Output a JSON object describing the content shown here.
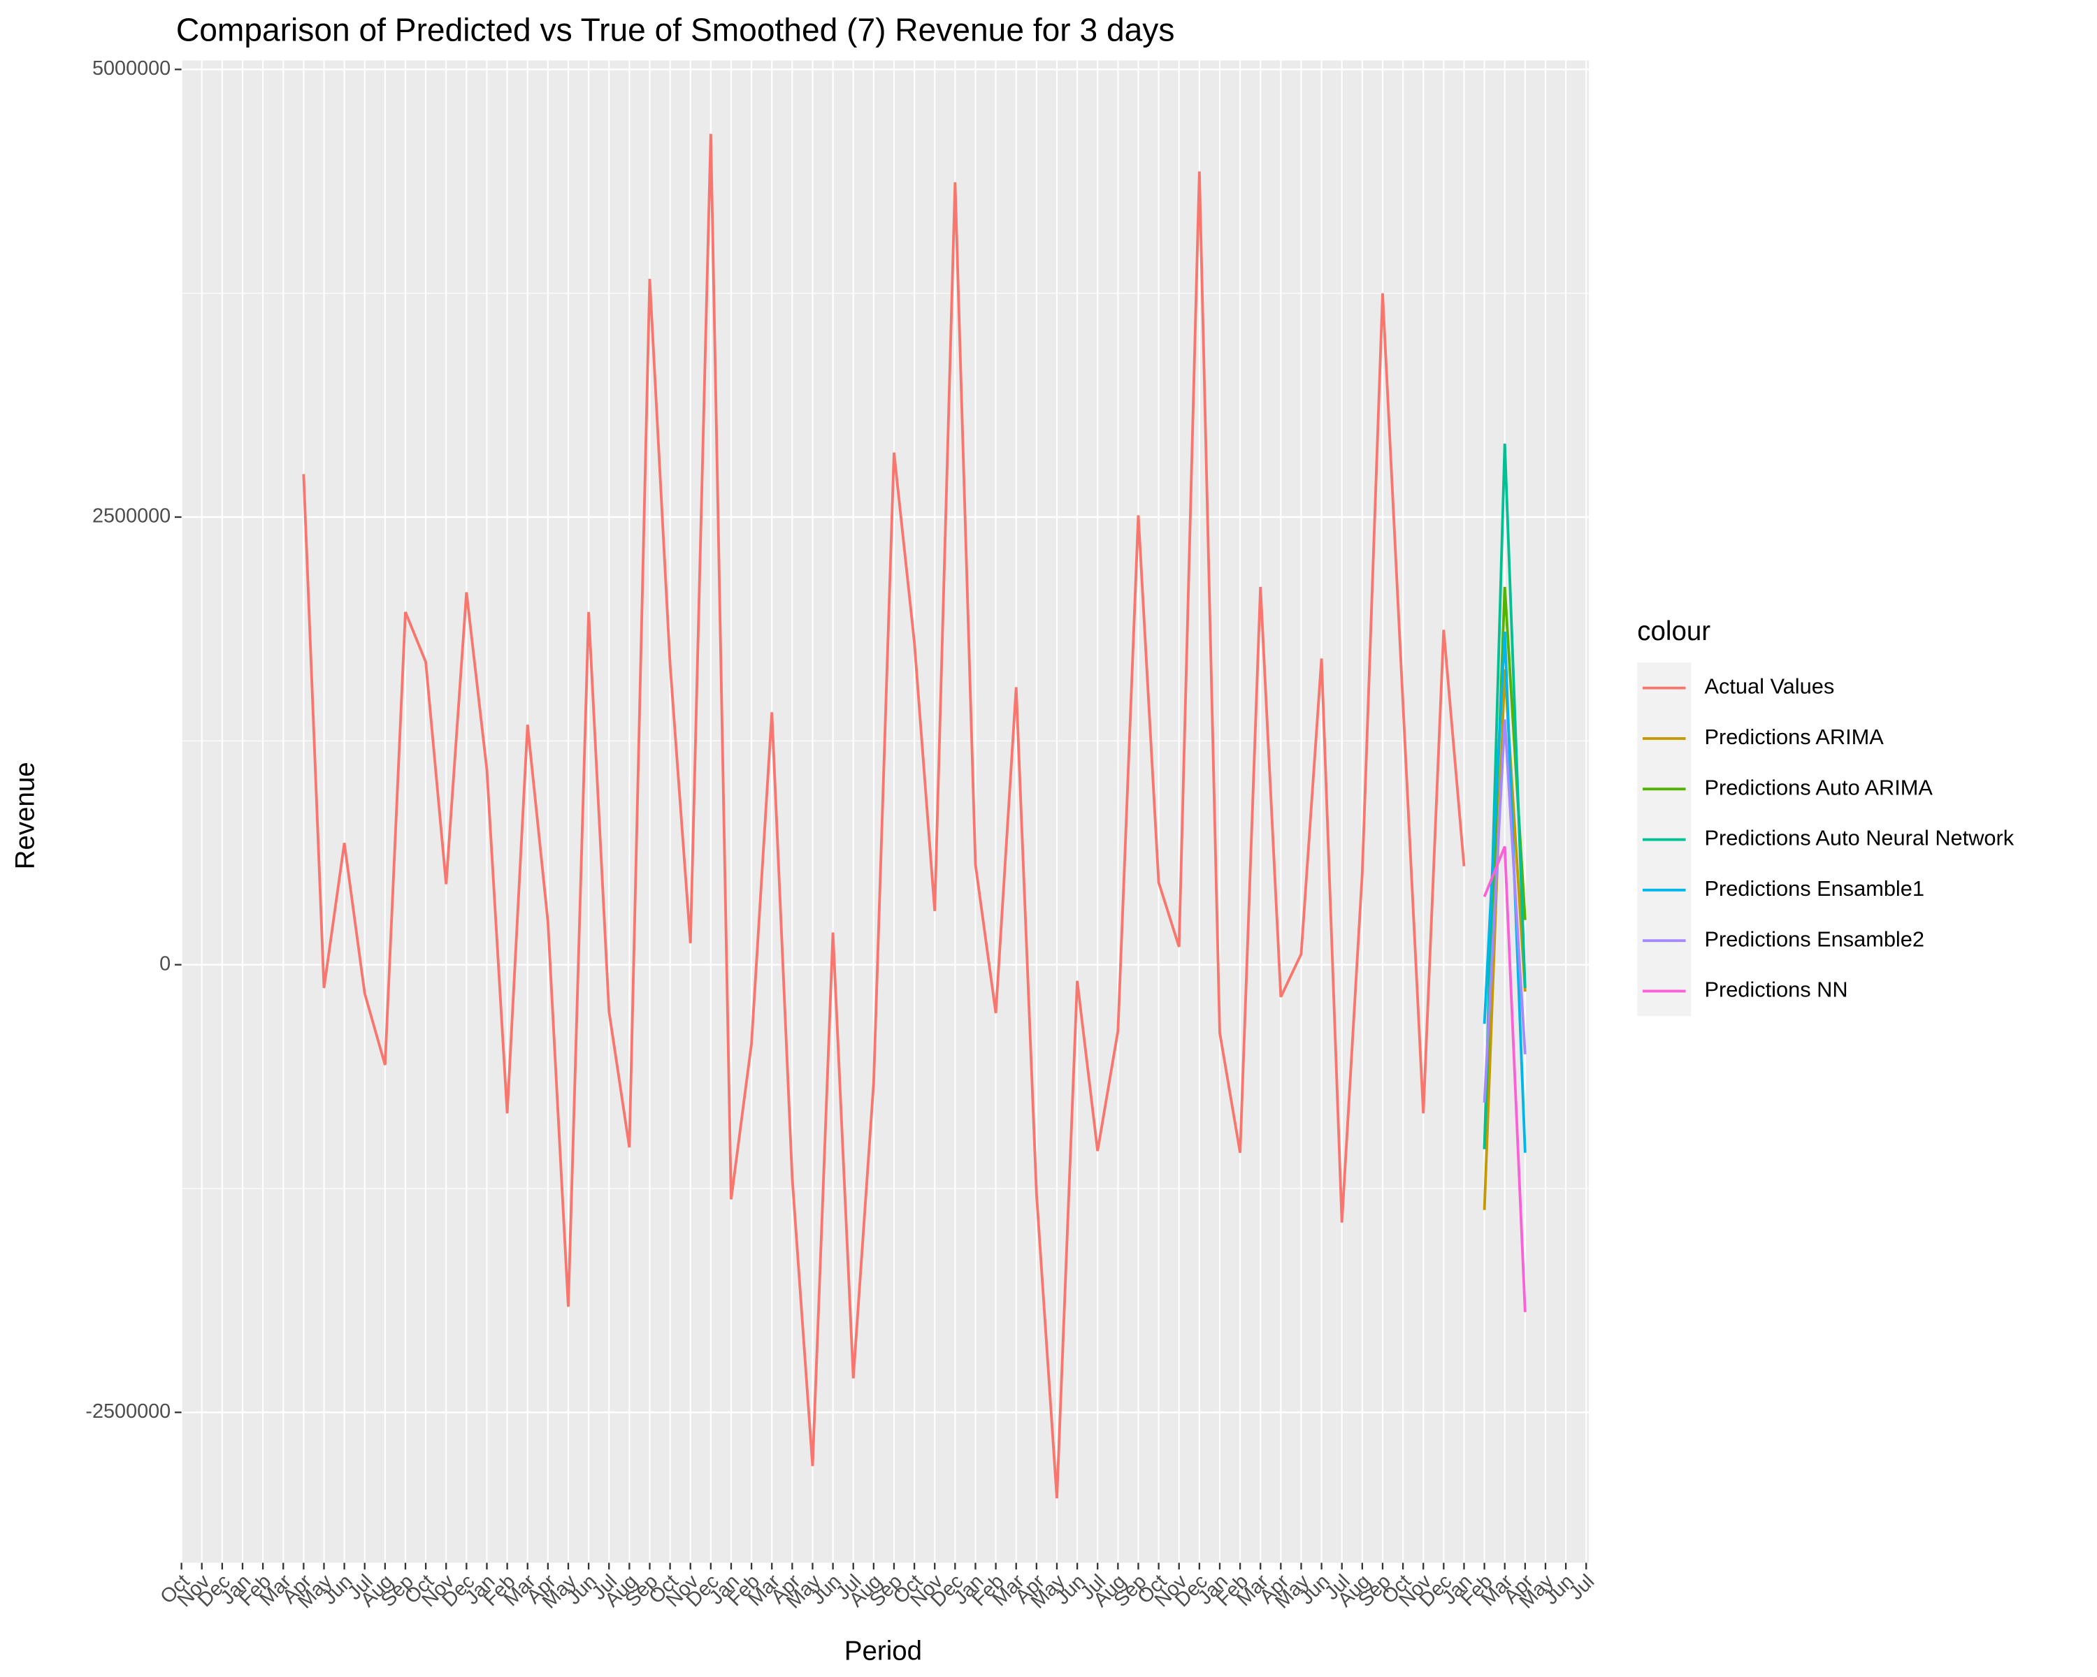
{
  "chart_data": {
    "type": "line",
    "title": "Comparison of Predicted vs True of Smoothed (7) Revenue for 3 days",
    "x_label": "Period",
    "y_label": "Revenue",
    "legend_title": "colour",
    "legend_position": "right",
    "categories": [
      "Oct",
      "Nov",
      "Dec",
      "Jan",
      "Feb",
      "Mar",
      "Apr",
      "May",
      "Jun",
      "Jul",
      "Aug",
      "Sep",
      "Oct",
      "Nov",
      "Dec",
      "Jan",
      "Feb",
      "Mar",
      "Apr",
      "May",
      "Jun",
      "Jul",
      "Aug",
      "Sep",
      "Oct",
      "Nov",
      "Dec",
      "Jan",
      "Feb",
      "Mar",
      "Apr",
      "May",
      "Jun",
      "Jul",
      "Aug",
      "Sep",
      "Oct",
      "Nov",
      "Dec",
      "Jan",
      "Feb",
      "Mar",
      "Apr",
      "May",
      "Jun",
      "Jul",
      "Aug",
      "Sep",
      "Oct",
      "Nov",
      "Dec",
      "Jan",
      "Feb",
      "Mar",
      "Apr",
      "May",
      "Jun",
      "Jul",
      "Aug",
      "Sep",
      "Oct",
      "Nov",
      "Dec",
      "Jan",
      "Feb",
      "Mar",
      "Apr",
      "May",
      "Jun",
      "Jul"
    ],
    "ylim": [
      -3340000,
      5050000
    ],
    "yticks": [
      -2500000,
      0,
      2500000,
      5000000
    ],
    "grid": true,
    "series": [
      {
        "name": "Actual Values",
        "color": "#F8766D",
        "values": [
          null,
          null,
          null,
          null,
          null,
          null,
          2740000,
          -130000,
          680000,
          -160000,
          -560000,
          1970000,
          1690000,
          450000,
          2080000,
          1090000,
          -830000,
          1340000,
          240000,
          -1910000,
          1970000,
          -260000,
          -1020000,
          3830000,
          1680000,
          120000,
          4640000,
          -1310000,
          -440000,
          1410000,
          -1190000,
          -2800000,
          180000,
          -2310000,
          -660000,
          2860000,
          1800000,
          300000,
          4370000,
          560000,
          -270000,
          1550000,
          -1280000,
          -2980000,
          -90000,
          -1040000,
          -370000,
          2510000,
          460000,
          100000,
          4430000,
          -380000,
          -1050000,
          2110000,
          -180000,
          60000,
          1710000,
          -1440000,
          510000,
          3750000,
          1460000,
          -830000,
          1870000,
          550000,
          null,
          null,
          null,
          null,
          null,
          null
        ]
      },
      {
        "name": "Predictions ARIMA",
        "color": "#C49A00",
        "values": [
          null,
          null,
          null,
          null,
          null,
          null,
          null,
          null,
          null,
          null,
          null,
          null,
          null,
          null,
          null,
          null,
          null,
          null,
          null,
          null,
          null,
          null,
          null,
          null,
          null,
          null,
          null,
          null,
          null,
          null,
          null,
          null,
          null,
          null,
          null,
          null,
          null,
          null,
          null,
          null,
          null,
          null,
          null,
          null,
          null,
          null,
          null,
          null,
          null,
          null,
          null,
          null,
          null,
          null,
          null,
          null,
          null,
          null,
          null,
          null,
          null,
          null,
          null,
          null,
          -1370000,
          1650000,
          -150000,
          null,
          null,
          null
        ]
      },
      {
        "name": "Predictions Auto ARIMA",
        "color": "#53B400",
        "values": [
          null,
          null,
          null,
          null,
          null,
          null,
          null,
          null,
          null,
          null,
          null,
          null,
          null,
          null,
          null,
          null,
          null,
          null,
          null,
          null,
          null,
          null,
          null,
          null,
          null,
          null,
          null,
          null,
          null,
          null,
          null,
          null,
          null,
          null,
          null,
          null,
          null,
          null,
          null,
          null,
          null,
          null,
          null,
          null,
          null,
          null,
          null,
          null,
          null,
          null,
          null,
          null,
          null,
          null,
          null,
          null,
          null,
          null,
          null,
          null,
          null,
          null,
          null,
          null,
          -1030000,
          2110000,
          250000,
          null,
          null,
          null
        ]
      },
      {
        "name": "Predictions Auto Neural Network",
        "color": "#00C094",
        "values": [
          null,
          null,
          null,
          null,
          null,
          null,
          null,
          null,
          null,
          null,
          null,
          null,
          null,
          null,
          null,
          null,
          null,
          null,
          null,
          null,
          null,
          null,
          null,
          null,
          null,
          null,
          null,
          null,
          null,
          null,
          null,
          null,
          null,
          null,
          null,
          null,
          null,
          null,
          null,
          null,
          null,
          null,
          null,
          null,
          null,
          null,
          null,
          null,
          null,
          null,
          null,
          null,
          null,
          null,
          null,
          null,
          null,
          null,
          null,
          null,
          null,
          null,
          null,
          null,
          -1030000,
          2910000,
          -130000,
          null,
          null,
          null
        ]
      },
      {
        "name": "Predictions Ensamble1",
        "color": "#00B6EB",
        "values": [
          null,
          null,
          null,
          null,
          null,
          null,
          null,
          null,
          null,
          null,
          null,
          null,
          null,
          null,
          null,
          null,
          null,
          null,
          null,
          null,
          null,
          null,
          null,
          null,
          null,
          null,
          null,
          null,
          null,
          null,
          null,
          null,
          null,
          null,
          null,
          null,
          null,
          null,
          null,
          null,
          null,
          null,
          null,
          null,
          null,
          null,
          null,
          null,
          null,
          null,
          null,
          null,
          null,
          null,
          null,
          null,
          null,
          null,
          null,
          null,
          null,
          null,
          null,
          null,
          -330000,
          1860000,
          -1050000,
          null,
          null,
          null
        ]
      },
      {
        "name": "Predictions Ensamble2",
        "color": "#A58AFF",
        "values": [
          null,
          null,
          null,
          null,
          null,
          null,
          null,
          null,
          null,
          null,
          null,
          null,
          null,
          null,
          null,
          null,
          null,
          null,
          null,
          null,
          null,
          null,
          null,
          null,
          null,
          null,
          null,
          null,
          null,
          null,
          null,
          null,
          null,
          null,
          null,
          null,
          null,
          null,
          null,
          null,
          null,
          null,
          null,
          null,
          null,
          null,
          null,
          null,
          null,
          null,
          null,
          null,
          null,
          null,
          null,
          null,
          null,
          null,
          null,
          null,
          null,
          null,
          null,
          null,
          -770000,
          1370000,
          -500000,
          null,
          null,
          null
        ]
      },
      {
        "name": "Predictions NN",
        "color": "#FB61D7",
        "values": [
          null,
          null,
          null,
          null,
          null,
          null,
          null,
          null,
          null,
          null,
          null,
          null,
          null,
          null,
          null,
          null,
          null,
          null,
          null,
          null,
          null,
          null,
          null,
          null,
          null,
          null,
          null,
          null,
          null,
          null,
          null,
          null,
          null,
          null,
          null,
          null,
          null,
          null,
          null,
          null,
          null,
          null,
          null,
          null,
          null,
          null,
          null,
          null,
          null,
          null,
          null,
          null,
          null,
          null,
          null,
          null,
          null,
          null,
          null,
          null,
          null,
          null,
          null,
          null,
          380000,
          660000,
          -1940000,
          null,
          null,
          null
        ]
      }
    ]
  }
}
